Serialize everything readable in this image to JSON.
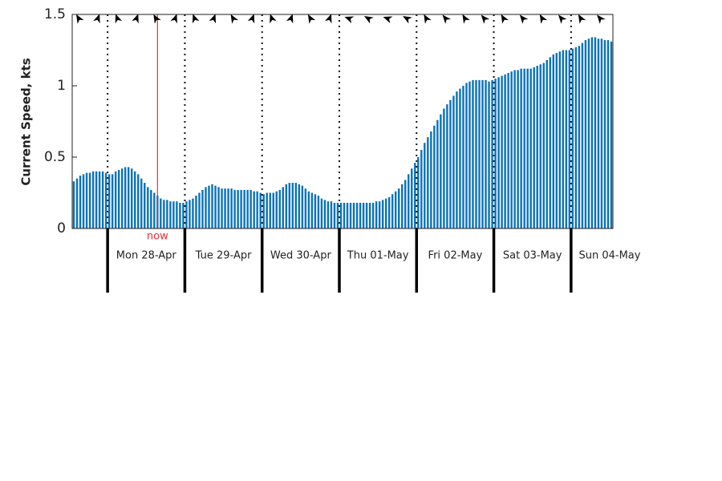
{
  "chart_data": {
    "type": "bar",
    "ylabel": "Current Speed, kts",
    "color": "#0a72b5",
    "xlim": [
      0,
      168
    ],
    "ylim": [
      0,
      1.5
    ],
    "yticks": [
      0,
      0.5,
      1,
      1.5
    ],
    "xticks": [
      {
        "value": 11,
        "label": "Mon 28-Apr"
      },
      {
        "value": 35,
        "label": "Tue 29-Apr"
      },
      {
        "value": 59,
        "label": "Wed 30-Apr"
      },
      {
        "value": 83,
        "label": "Thu 01-May"
      },
      {
        "value": 107,
        "label": "Fri 02-May"
      },
      {
        "value": 131,
        "label": "Sat 03-May"
      },
      {
        "value": 155,
        "label": "Sun 04-May"
      }
    ],
    "values": [
      0.33,
      0.35,
      0.37,
      0.38,
      0.39,
      0.39,
      0.4,
      0.4,
      0.4,
      0.4,
      0.39,
      0.38,
      0.38,
      0.4,
      0.41,
      0.42,
      0.43,
      0.43,
      0.42,
      0.4,
      0.38,
      0.35,
      0.32,
      0.29,
      0.27,
      0.25,
      0.23,
      0.21,
      0.2,
      0.2,
      0.19,
      0.19,
      0.19,
      0.18,
      0.18,
      0.19,
      0.2,
      0.21,
      0.23,
      0.25,
      0.27,
      0.29,
      0.3,
      0.31,
      0.3,
      0.29,
      0.28,
      0.28,
      0.28,
      0.28,
      0.27,
      0.27,
      0.27,
      0.27,
      0.27,
      0.27,
      0.26,
      0.26,
      0.25,
      0.24,
      0.25,
      0.25,
      0.25,
      0.26,
      0.27,
      0.29,
      0.31,
      0.32,
      0.32,
      0.32,
      0.31,
      0.3,
      0.28,
      0.26,
      0.25,
      0.24,
      0.23,
      0.21,
      0.2,
      0.19,
      0.19,
      0.18,
      0.18,
      0.18,
      0.18,
      0.18,
      0.18,
      0.18,
      0.18,
      0.18,
      0.18,
      0.18,
      0.18,
      0.18,
      0.19,
      0.19,
      0.2,
      0.21,
      0.22,
      0.24,
      0.26,
      0.28,
      0.31,
      0.34,
      0.38,
      0.42,
      0.46,
      0.5,
      0.55,
      0.6,
      0.64,
      0.68,
      0.72,
      0.76,
      0.8,
      0.84,
      0.87,
      0.9,
      0.93,
      0.96,
      0.98,
      1.0,
      1.02,
      1.03,
      1.04,
      1.04,
      1.04,
      1.04,
      1.04,
      1.03,
      1.04,
      1.05,
      1.06,
      1.07,
      1.08,
      1.09,
      1.1,
      1.11,
      1.11,
      1.12,
      1.12,
      1.12,
      1.12,
      1.13,
      1.14,
      1.15,
      1.16,
      1.18,
      1.2,
      1.22,
      1.23,
      1.24,
      1.25,
      1.25,
      1.25,
      1.26,
      1.27,
      1.28,
      1.3,
      1.32,
      1.33,
      1.34,
      1.34,
      1.33,
      1.33,
      1.32,
      1.32,
      1.31
    ],
    "direction_arrows": {
      "x": [
        2,
        8,
        14,
        20,
        26,
        32,
        38,
        44,
        50,
        56,
        62,
        68,
        74,
        80,
        86,
        92,
        98,
        104,
        110,
        116,
        122,
        128,
        134,
        140,
        146,
        152,
        158,
        164
      ],
      "values": [
        330,
        20,
        340,
        20,
        330,
        20,
        340,
        20,
        330,
        20,
        340,
        20,
        330,
        20,
        290,
        300,
        290,
        300,
        330,
        320,
        330,
        320,
        330,
        320,
        330,
        320,
        330,
        320
      ]
    },
    "annotations": [
      {
        "text": "now",
        "x": 26.5,
        "color": "#e0303a"
      }
    ]
  }
}
